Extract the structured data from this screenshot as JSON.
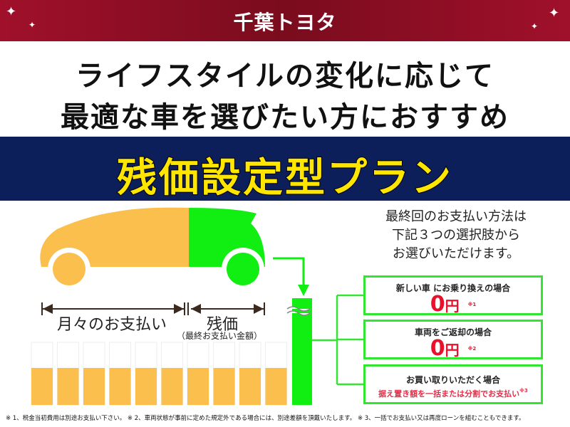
{
  "header": {
    "logo": "千葉トヨタ"
  },
  "headline": {
    "line1": "ライフスタイルの変化に応じて",
    "line2": "最適な車を選びたい方におすすめ"
  },
  "plan_title": "残価設定型プラン",
  "diagram": {
    "monthly_label": "月々のお支払い",
    "residual_label": "残価",
    "residual_sub": "（最終お支払い金額）",
    "monthly_bar_count": 10,
    "colors": {
      "monthly": "#fbbf4e",
      "residual": "#11ee11"
    }
  },
  "intro": [
    "最終回のお支払い方法は",
    "下記３つの選択肢から",
    "お選びいただけます。"
  ],
  "options": [
    {
      "label": "新しい車 にお乗り換えの場合",
      "amount": "0",
      "unit": "円",
      "note": "※1"
    },
    {
      "label": "車両をご返却の場合",
      "amount": "0",
      "unit": "円",
      "note": "※2"
    },
    {
      "label": "お買い取りいただく場合",
      "detail": "据え置き額を一括または分割でお支払い",
      "note": "※3"
    }
  ],
  "footnote": "※ 1、税金当初費用は別途お支払い下さい。 ※ 2、車両状態が事前に定めた規定外である場合には、別途差額を頂戴いたします。 ※ 3、一括でお支払い又は再度ローンを組むこともできます。"
}
